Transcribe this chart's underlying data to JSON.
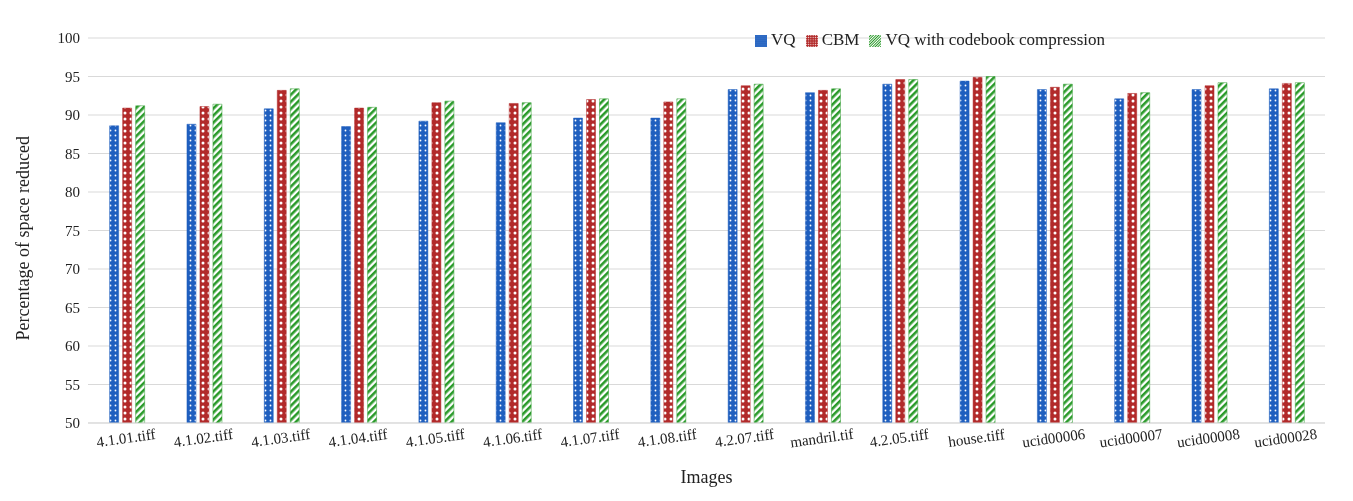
{
  "chart_data": {
    "type": "bar",
    "xlabel": "Images",
    "ylabel": "Percentage of space reduced",
    "categories": [
      "4.1.01.tiff",
      "4.1.02.tiff",
      "4.1.03.tiff",
      "4.1.04.tiff",
      "4.1.05.tiff",
      "4.1.06.tiff",
      "4.1.07.tiff",
      "4.1.08.tiff",
      "4.2.07.tiff",
      "mandril.tif",
      "4.2.05.tiff",
      "house.tiff",
      "ucid00006",
      "ucid00007",
      "ucid00008",
      "ucid00028"
    ],
    "series": [
      {
        "name": "VQ",
        "color": "#1f5fbf",
        "values": [
          88.6,
          88.8,
          90.8,
          88.5,
          89.2,
          89.0,
          89.6,
          89.6,
          93.3,
          92.9,
          94.0,
          94.4,
          93.3,
          92.1,
          93.3,
          93.4
        ]
      },
      {
        "name": "CBM",
        "color": "#b22a2a",
        "values": [
          90.9,
          91.1,
          93.2,
          90.9,
          91.6,
          91.5,
          92.0,
          91.7,
          93.8,
          93.2,
          94.6,
          94.9,
          93.6,
          92.8,
          93.8,
          94.1
        ]
      },
      {
        "name": "VQ with codebook compression",
        "color": "#2a9a2a",
        "values": [
          91.2,
          91.4,
          93.4,
          91.0,
          91.8,
          91.6,
          92.1,
          92.1,
          94.0,
          93.4,
          94.6,
          95.0,
          94.0,
          92.9,
          94.2,
          94.2
        ]
      }
    ],
    "ylim": [
      50,
      100
    ],
    "yticks": [
      50,
      55,
      60,
      65,
      70,
      75,
      80,
      85,
      90,
      95,
      100
    ],
    "grid": "y",
    "legend": "top right"
  }
}
